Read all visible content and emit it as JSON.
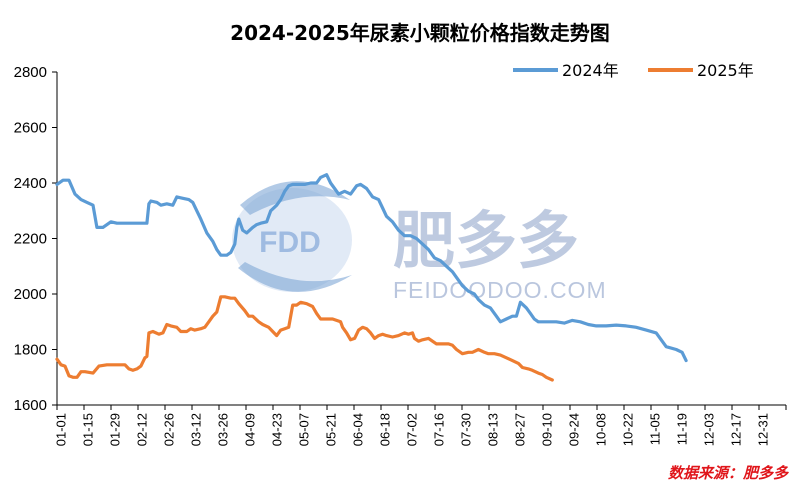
{
  "chart_data": {
    "type": "line",
    "title": "2024-2025年尿素小颗粒价格指数走势图",
    "ylim": [
      1600,
      2800
    ],
    "yticks": [
      1600,
      1800,
      2000,
      2200,
      2400,
      2600,
      2800
    ],
    "x_categories": [
      "01-01",
      "01-15",
      "01-29",
      "02-12",
      "02-26",
      "03-12",
      "03-26",
      "04-09",
      "04-23",
      "05-07",
      "05-21",
      "06-04",
      "06-18",
      "07-02",
      "07-16",
      "07-30",
      "08-13",
      "08-27",
      "09-10",
      "09-24",
      "10-08",
      "10-22",
      "11-05",
      "11-19",
      "12-03",
      "12-17",
      "12-31"
    ],
    "x_domain_days": [
      0,
      365
    ],
    "legend_position": "top-right",
    "series": [
      {
        "name": "2024年",
        "color": "#5b9bd5",
        "points": [
          [
            0,
            2395
          ],
          [
            3,
            2410
          ],
          [
            6,
            2410
          ],
          [
            9,
            2360
          ],
          [
            12,
            2340
          ],
          [
            15,
            2330
          ],
          [
            18,
            2320
          ],
          [
            20,
            2240
          ],
          [
            23,
            2240
          ],
          [
            27,
            2260
          ],
          [
            30,
            2255
          ],
          [
            35,
            2255
          ],
          [
            40,
            2255
          ],
          [
            45,
            2255
          ],
          [
            46,
            2325
          ],
          [
            47,
            2335
          ],
          [
            50,
            2330
          ],
          [
            52,
            2320
          ],
          [
            55,
            2325
          ],
          [
            58,
            2320
          ],
          [
            60,
            2350
          ],
          [
            63,
            2345
          ],
          [
            66,
            2340
          ],
          [
            68,
            2330
          ],
          [
            70,
            2300
          ],
          [
            72,
            2270
          ],
          [
            75,
            2220
          ],
          [
            78,
            2190
          ],
          [
            80,
            2160
          ],
          [
            82,
            2140
          ],
          [
            85,
            2140
          ],
          [
            87,
            2150
          ],
          [
            89,
            2180
          ],
          [
            90,
            2240
          ],
          [
            91,
            2270
          ],
          [
            93,
            2230
          ],
          [
            95,
            2220
          ],
          [
            98,
            2240
          ],
          [
            100,
            2250
          ],
          [
            102,
            2255
          ],
          [
            105,
            2260
          ],
          [
            107,
            2300
          ],
          [
            110,
            2320
          ],
          [
            112,
            2340
          ],
          [
            114,
            2370
          ],
          [
            116,
            2390
          ],
          [
            118,
            2395
          ],
          [
            121,
            2395
          ],
          [
            124,
            2395
          ],
          [
            127,
            2400
          ],
          [
            130,
            2400
          ],
          [
            132,
            2420
          ],
          [
            135,
            2430
          ],
          [
            137,
            2400
          ],
          [
            139,
            2380
          ],
          [
            141,
            2360
          ],
          [
            144,
            2370
          ],
          [
            147,
            2360
          ],
          [
            150,
            2390
          ],
          [
            152,
            2395
          ],
          [
            155,
            2380
          ],
          [
            158,
            2350
          ],
          [
            161,
            2340
          ],
          [
            163,
            2310
          ],
          [
            165,
            2280
          ],
          [
            168,
            2260
          ],
          [
            171,
            2230
          ],
          [
            174,
            2210
          ],
          [
            177,
            2210
          ],
          [
            180,
            2200
          ],
          [
            183,
            2180
          ],
          [
            186,
            2160
          ],
          [
            189,
            2130
          ],
          [
            192,
            2120
          ],
          [
            195,
            2100
          ],
          [
            198,
            2080
          ],
          [
            200,
            2060
          ],
          [
            203,
            2030
          ],
          [
            206,
            2010
          ],
          [
            209,
            2000
          ],
          [
            211,
            1980
          ],
          [
            214,
            1960
          ],
          [
            217,
            1950
          ],
          [
            220,
            1920
          ],
          [
            222,
            1900
          ],
          [
            225,
            1910
          ],
          [
            228,
            1920
          ],
          [
            230,
            1920
          ],
          [
            232,
            1970
          ],
          [
            235,
            1950
          ],
          [
            237,
            1930
          ],
          [
            239,
            1910
          ],
          [
            241,
            1900
          ],
          [
            245,
            1900
          ],
          [
            250,
            1900
          ],
          [
            254,
            1895
          ],
          [
            258,
            1905
          ],
          [
            262,
            1900
          ],
          [
            266,
            1890
          ],
          [
            270,
            1885
          ],
          [
            275,
            1885
          ],
          [
            280,
            1888
          ],
          [
            285,
            1885
          ],
          [
            290,
            1880
          ],
          [
            295,
            1870
          ],
          [
            300,
            1860
          ],
          [
            302,
            1840
          ],
          [
            305,
            1810
          ],
          [
            310,
            1800
          ],
          [
            313,
            1790
          ],
          [
            315,
            1760
          ]
        ]
      },
      {
        "name": "2025年",
        "color": "#ed7d31",
        "points": [
          [
            0,
            1765
          ],
          [
            2,
            1745
          ],
          [
            4,
            1740
          ],
          [
            6,
            1705
          ],
          [
            8,
            1700
          ],
          [
            10,
            1700
          ],
          [
            12,
            1720
          ],
          [
            14,
            1720
          ],
          [
            18,
            1715
          ],
          [
            21,
            1740
          ],
          [
            25,
            1745
          ],
          [
            30,
            1745
          ],
          [
            34,
            1745
          ],
          [
            36,
            1730
          ],
          [
            38,
            1725
          ],
          [
            40,
            1730
          ],
          [
            42,
            1740
          ],
          [
            44,
            1770
          ],
          [
            45,
            1775
          ],
          [
            46,
            1860
          ],
          [
            48,
            1865
          ],
          [
            51,
            1855
          ],
          [
            53,
            1860
          ],
          [
            55,
            1890
          ],
          [
            57,
            1885
          ],
          [
            60,
            1880
          ],
          [
            62,
            1865
          ],
          [
            65,
            1865
          ],
          [
            67,
            1875
          ],
          [
            69,
            1870
          ],
          [
            72,
            1875
          ],
          [
            74,
            1880
          ],
          [
            76,
            1900
          ],
          [
            78,
            1920
          ],
          [
            80,
            1935
          ],
          [
            82,
            1990
          ],
          [
            84,
            1990
          ],
          [
            87,
            1985
          ],
          [
            89,
            1985
          ],
          [
            91,
            1965
          ],
          [
            94,
            1940
          ],
          [
            96,
            1920
          ],
          [
            98,
            1920
          ],
          [
            101,
            1900
          ],
          [
            103,
            1890
          ],
          [
            106,
            1880
          ],
          [
            108,
            1865
          ],
          [
            110,
            1850
          ],
          [
            112,
            1870
          ],
          [
            114,
            1875
          ],
          [
            116,
            1880
          ],
          [
            117,
            1920
          ],
          [
            118,
            1960
          ],
          [
            120,
            1960
          ],
          [
            122,
            1970
          ],
          [
            125,
            1965
          ],
          [
            128,
            1955
          ],
          [
            130,
            1930
          ],
          [
            132,
            1910
          ],
          [
            135,
            1910
          ],
          [
            138,
            1910
          ],
          [
            140,
            1905
          ],
          [
            142,
            1900
          ],
          [
            143,
            1880
          ],
          [
            145,
            1860
          ],
          [
            147,
            1835
          ],
          [
            149,
            1840
          ],
          [
            151,
            1870
          ],
          [
            153,
            1880
          ],
          [
            155,
            1875
          ],
          [
            157,
            1860
          ],
          [
            159,
            1840
          ],
          [
            161,
            1850
          ],
          [
            163,
            1855
          ],
          [
            165,
            1850
          ],
          [
            168,
            1845
          ],
          [
            171,
            1850
          ],
          [
            174,
            1860
          ],
          [
            176,
            1855
          ],
          [
            178,
            1860
          ],
          [
            179,
            1840
          ],
          [
            181,
            1830
          ],
          [
            183,
            1835
          ],
          [
            186,
            1840
          ],
          [
            188,
            1830
          ],
          [
            190,
            1820
          ],
          [
            193,
            1820
          ],
          [
            196,
            1820
          ],
          [
            198,
            1815
          ],
          [
            200,
            1800
          ],
          [
            203,
            1785
          ],
          [
            206,
            1790
          ],
          [
            208,
            1790
          ],
          [
            211,
            1800
          ],
          [
            214,
            1790
          ],
          [
            216,
            1785
          ],
          [
            219,
            1785
          ],
          [
            222,
            1780
          ],
          [
            225,
            1770
          ],
          [
            228,
            1760
          ],
          [
            231,
            1750
          ],
          [
            233,
            1735
          ],
          [
            236,
            1730
          ],
          [
            238,
            1725
          ],
          [
            241,
            1715
          ],
          [
            243,
            1710
          ],
          [
            245,
            1700
          ],
          [
            248,
            1690
          ]
        ]
      }
    ],
    "source_note": "数据来源：肥多多"
  },
  "watermark": {
    "logo_text": "FDD",
    "brand_text": "肥多多",
    "sub_text": "FEIDOODOO.COM"
  }
}
